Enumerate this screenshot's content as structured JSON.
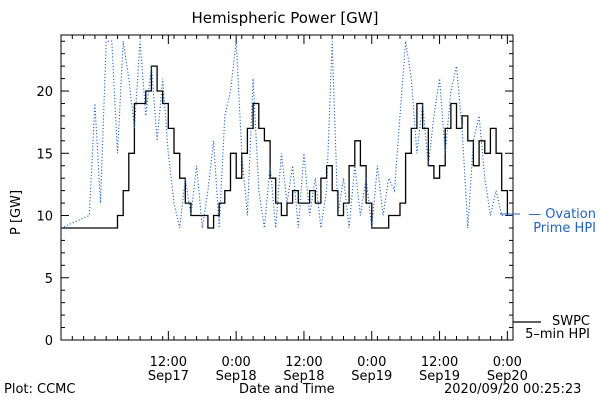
{
  "chart_data": {
    "type": "line",
    "title": "Hemispheric Power [GW]",
    "xlabel": "Date and Time",
    "ylabel": "P [GW]",
    "ylim": [
      0,
      24.5
    ],
    "xlim": [
      "2020-09-16T17:00",
      "2020-09-20T01:00"
    ],
    "yticks": [
      0,
      5,
      10,
      15,
      20
    ],
    "xticks": [
      {
        "t": "2020-09-17T12:00",
        "time": "12:00",
        "date": "Sep17"
      },
      {
        "t": "2020-09-18T00:00",
        "time": "0:00",
        "date": "Sep18"
      },
      {
        "t": "2020-09-18T12:00",
        "time": "12:00",
        "date": "Sep18"
      },
      {
        "t": "2020-09-19T00:00",
        "time": "0:00",
        "date": "Sep19"
      },
      {
        "t": "2020-09-19T12:00",
        "time": "12:00",
        "date": "Sep19"
      },
      {
        "t": "2020-09-20T00:00",
        "time": "0:00",
        "date": "Sep20"
      }
    ],
    "grid": false,
    "legend_placement": "right",
    "series": [
      {
        "name": "SWPC 5-min HPI",
        "color": "#000000",
        "style": "solid",
        "points": [
          [
            "2020-09-16T17:00",
            9
          ],
          [
            "2020-09-17T02:00",
            9
          ],
          [
            "2020-09-17T03:00",
            10
          ],
          [
            "2020-09-17T04:00",
            12
          ],
          [
            "2020-09-17T05:00",
            15
          ],
          [
            "2020-09-17T06:00",
            19
          ],
          [
            "2020-09-17T08:00",
            20
          ],
          [
            "2020-09-17T09:00",
            22
          ],
          [
            "2020-09-17T10:00",
            20
          ],
          [
            "2020-09-17T11:00",
            19
          ],
          [
            "2020-09-17T12:00",
            17
          ],
          [
            "2020-09-17T13:00",
            15
          ],
          [
            "2020-09-17T14:00",
            13
          ],
          [
            "2020-09-17T15:00",
            11
          ],
          [
            "2020-09-17T16:00",
            10
          ],
          [
            "2020-09-17T18:00",
            10
          ],
          [
            "2020-09-17T19:00",
            9
          ],
          [
            "2020-09-17T20:00",
            10
          ],
          [
            "2020-09-17T21:00",
            11
          ],
          [
            "2020-09-17T22:00",
            12
          ],
          [
            "2020-09-17T23:00",
            15
          ],
          [
            "2020-09-18T00:00",
            13
          ],
          [
            "2020-09-18T01:00",
            15
          ],
          [
            "2020-09-18T02:00",
            17
          ],
          [
            "2020-09-18T03:00",
            19
          ],
          [
            "2020-09-18T04:00",
            17
          ],
          [
            "2020-09-18T05:00",
            16
          ],
          [
            "2020-09-18T06:00",
            13
          ],
          [
            "2020-09-18T07:00",
            11
          ],
          [
            "2020-09-18T08:00",
            10
          ],
          [
            "2020-09-18T09:00",
            11
          ],
          [
            "2020-09-18T10:00",
            12
          ],
          [
            "2020-09-18T11:00",
            11
          ],
          [
            "2020-09-18T12:00",
            11
          ],
          [
            "2020-09-18T13:00",
            12
          ],
          [
            "2020-09-18T14:00",
            11
          ],
          [
            "2020-09-18T15:00",
            13
          ],
          [
            "2020-09-18T16:00",
            14
          ],
          [
            "2020-09-18T17:00",
            12
          ],
          [
            "2020-09-18T18:00",
            10
          ],
          [
            "2020-09-18T19:00",
            11
          ],
          [
            "2020-09-18T20:00",
            14
          ],
          [
            "2020-09-18T21:00",
            16
          ],
          [
            "2020-09-18T22:00",
            14
          ],
          [
            "2020-09-18T23:00",
            11
          ],
          [
            "2020-09-19T00:00",
            9
          ],
          [
            "2020-09-19T02:00",
            9
          ],
          [
            "2020-09-19T03:00",
            10
          ],
          [
            "2020-09-19T04:00",
            10
          ],
          [
            "2020-09-19T05:00",
            11
          ],
          [
            "2020-09-19T06:00",
            15
          ],
          [
            "2020-09-19T07:00",
            17
          ],
          [
            "2020-09-19T08:00",
            19
          ],
          [
            "2020-09-19T09:00",
            17
          ],
          [
            "2020-09-19T10:00",
            14
          ],
          [
            "2020-09-19T11:00",
            13
          ],
          [
            "2020-09-19T12:00",
            14
          ],
          [
            "2020-09-19T13:00",
            17
          ],
          [
            "2020-09-19T14:00",
            19
          ],
          [
            "2020-09-19T15:00",
            17
          ],
          [
            "2020-09-19T16:00",
            18
          ],
          [
            "2020-09-19T17:00",
            16
          ],
          [
            "2020-09-19T18:00",
            14
          ],
          [
            "2020-09-19T19:00",
            16
          ],
          [
            "2020-09-19T20:00",
            15
          ],
          [
            "2020-09-19T21:00",
            17
          ],
          [
            "2020-09-19T22:00",
            15
          ],
          [
            "2020-09-19T23:00",
            12
          ],
          [
            "2020-09-20T00:00",
            10
          ]
        ]
      },
      {
        "name": "Ovation Prime HPI",
        "color": "#2563b8",
        "style": "dotted",
        "points": [
          [
            "2020-09-16T17:00",
            9
          ],
          [
            "2020-09-16T22:00",
            10
          ],
          [
            "2020-09-16T23:00",
            19
          ],
          [
            "2020-09-17T00:00",
            11
          ],
          [
            "2020-09-17T01:00",
            24
          ],
          [
            "2020-09-17T02:00",
            24
          ],
          [
            "2020-09-17T03:00",
            15
          ],
          [
            "2020-09-17T04:00",
            24
          ],
          [
            "2020-09-17T05:00",
            21
          ],
          [
            "2020-09-17T06:00",
            17
          ],
          [
            "2020-09-17T07:00",
            24
          ],
          [
            "2020-09-17T08:00",
            18
          ],
          [
            "2020-09-17T09:00",
            22
          ],
          [
            "2020-09-17T10:00",
            16
          ],
          [
            "2020-09-17T11:00",
            21
          ],
          [
            "2020-09-17T12:00",
            15
          ],
          [
            "2020-09-17T13:00",
            11
          ],
          [
            "2020-09-17T14:00",
            9
          ],
          [
            "2020-09-17T15:00",
            13
          ],
          [
            "2020-09-17T16:00",
            10
          ],
          [
            "2020-09-17T17:00",
            14
          ],
          [
            "2020-09-17T18:00",
            9
          ],
          [
            "2020-09-17T19:00",
            12
          ],
          [
            "2020-09-17T20:00",
            16
          ],
          [
            "2020-09-17T21:00",
            9
          ],
          [
            "2020-09-17T22:00",
            18
          ],
          [
            "2020-09-17T23:00",
            20
          ],
          [
            "2020-09-18T00:00",
            24
          ],
          [
            "2020-09-18T01:00",
            15
          ],
          [
            "2020-09-18T02:00",
            10
          ],
          [
            "2020-09-18T03:00",
            21
          ],
          [
            "2020-09-18T04:00",
            12
          ],
          [
            "2020-09-18T05:00",
            9
          ],
          [
            "2020-09-18T06:00",
            14
          ],
          [
            "2020-09-18T07:00",
            9
          ],
          [
            "2020-09-18T08:00",
            15
          ],
          [
            "2020-09-18T09:00",
            11
          ],
          [
            "2020-09-18T10:00",
            14
          ],
          [
            "2020-09-18T11:00",
            9
          ],
          [
            "2020-09-18T12:00",
            15
          ],
          [
            "2020-09-18T13:00",
            10
          ],
          [
            "2020-09-18T14:00",
            13
          ],
          [
            "2020-09-18T15:00",
            9
          ],
          [
            "2020-09-18T16:00",
            12
          ],
          [
            "2020-09-18T17:00",
            24
          ],
          [
            "2020-09-18T18:00",
            10
          ],
          [
            "2020-09-18T19:00",
            13
          ],
          [
            "2020-09-18T20:00",
            9
          ],
          [
            "2020-09-18T21:00",
            14
          ],
          [
            "2020-09-18T22:00",
            10
          ],
          [
            "2020-09-18T23:00",
            13
          ],
          [
            "2020-09-19T00:00",
            9
          ],
          [
            "2020-09-19T01:00",
            14
          ],
          [
            "2020-09-19T02:00",
            10
          ],
          [
            "2020-09-19T03:00",
            13
          ],
          [
            "2020-09-19T04:00",
            12
          ],
          [
            "2020-09-19T05:00",
            18
          ],
          [
            "2020-09-19T06:00",
            24
          ],
          [
            "2020-09-19T07:00",
            21
          ],
          [
            "2020-09-19T08:00",
            15
          ],
          [
            "2020-09-19T09:00",
            19
          ],
          [
            "2020-09-19T10:00",
            14
          ],
          [
            "2020-09-19T11:00",
            18
          ],
          [
            "2020-09-19T12:00",
            21
          ],
          [
            "2020-09-19T13:00",
            15
          ],
          [
            "2020-09-19T14:00",
            20
          ],
          [
            "2020-09-19T15:00",
            22
          ],
          [
            "2020-09-19T16:00",
            17
          ],
          [
            "2020-09-19T17:00",
            9
          ],
          [
            "2020-09-19T18:00",
            16
          ],
          [
            "2020-09-19T19:00",
            18
          ],
          [
            "2020-09-19T20:00",
            13
          ],
          [
            "2020-09-19T21:00",
            10
          ],
          [
            "2020-09-19T22:00",
            12
          ],
          [
            "2020-09-19T23:00",
            10
          ],
          [
            "2020-09-20T00:00",
            10
          ],
          [
            "2020-09-20T01:00",
            10
          ]
        ]
      }
    ]
  },
  "legend": {
    "ovation_line1": "— Ovation",
    "ovation_line2": "Prime HPI",
    "swpc_line1": "SWPC",
    "swpc_line2": "5–min HPI"
  },
  "footer": {
    "plot_credit": "Plot: CCMC",
    "timestamp": "2020/09/20 00:25:23"
  }
}
